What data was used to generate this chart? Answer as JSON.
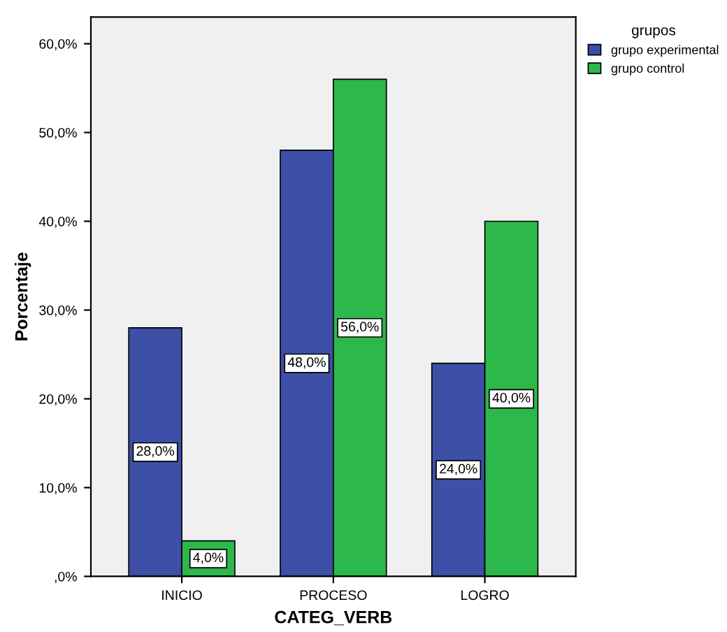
{
  "chart_data": {
    "type": "bar",
    "xlabel": "CATEG_VERB",
    "ylabel": "Porcentaje",
    "legend_title": "grupos",
    "categories": [
      "INICIO",
      "PROCESO",
      "LOGRO"
    ],
    "series": [
      {
        "name": "grupo experimental",
        "color": "#3d4fa6",
        "values": [
          28.0,
          48.0,
          24.0
        ],
        "value_labels": [
          "28,0%",
          "48,0%",
          "24,0%"
        ]
      },
      {
        "name": "grupo control",
        "color": "#2cb84b",
        "values": [
          4.0,
          56.0,
          40.0
        ],
        "value_labels": [
          "4,0%",
          "56,0%",
          "40,0%"
        ]
      }
    ],
    "ylim": [
      0,
      63
    ],
    "yticks": [
      {
        "value": 0,
        "label": ",0%"
      },
      {
        "value": 10,
        "label": "10,0%"
      },
      {
        "value": 20,
        "label": "20,0%"
      },
      {
        "value": 30,
        "label": "30,0%"
      },
      {
        "value": 40,
        "label": "40,0%"
      },
      {
        "value": 50,
        "label": "50,0%"
      },
      {
        "value": 60,
        "label": "60,0%"
      }
    ],
    "grid": false,
    "legend": "top right"
  }
}
